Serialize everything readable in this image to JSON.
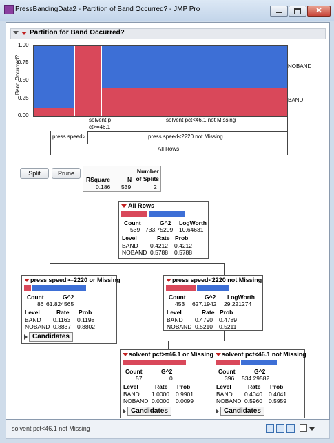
{
  "window": {
    "title": "PressBandingData2 - Partition of Band Occurred? - JMP Pro"
  },
  "report": {
    "heading": "Partition for Band Occurred?"
  },
  "plot": {
    "ylabel": "Band Occurred?",
    "yticks": [
      "1.00",
      "0.75",
      "0.50",
      "0.25",
      "0.00"
    ],
    "legend": {
      "noband": "NOBAND",
      "band": "BAND"
    },
    "segment_labels": [
      "solvent p ct>=46.1",
      "solvent pct<46.1 not Missing"
    ],
    "level2_labels": [
      "press speed>",
      "press speed<2220 not Missing"
    ],
    "root_label": "All Rows",
    "colors": {
      "band": "#d9485a",
      "noband": "#3d6fd6"
    },
    "columns": [
      {
        "name": "press speed>=2220 or Missing",
        "band_rate": 0.1163,
        "width": 86
      },
      {
        "name": "solvent pct>=46.1 or Missing",
        "band_rate": 1.0,
        "width": 57
      },
      {
        "name": "solvent pct<46.1 not Missing",
        "band_rate": 0.404,
        "width": 396
      }
    ]
  },
  "toolbar": {
    "split_label": "Split",
    "prune_label": "Prune"
  },
  "summary": {
    "headers": [
      "RSquare",
      "N",
      "Number of Splits"
    ],
    "values": [
      "0.186",
      "539",
      "2"
    ]
  },
  "tree": {
    "root": {
      "title": "All Rows",
      "count_headers": [
        "Count",
        "G^2",
        "LogWorth"
      ],
      "count_values": [
        "539",
        "733.75209",
        "10.64631"
      ],
      "level_headers": [
        "Level",
        "Rate",
        "Prob"
      ],
      "levels": [
        {
          "level": "BAND",
          "rate": "0.4212",
          "prob": "0.4212"
        },
        {
          "level": "NOBAND",
          "rate": "0.5788",
          "prob": "0.5788"
        }
      ]
    },
    "left": {
      "title": "press speed>=2220 or Missing",
      "count_headers": [
        "Count",
        "G^2"
      ],
      "count_values": [
        "86",
        "61.824565"
      ],
      "level_headers": [
        "Level",
        "Rate",
        "Prob"
      ],
      "levels": [
        {
          "level": "BAND",
          "rate": "0.1163",
          "prob": "0.1198"
        },
        {
          "level": "NOBAND",
          "rate": "0.8837",
          "prob": "0.8802"
        }
      ],
      "candidates_label": "Candidates"
    },
    "right": {
      "title": "press speed<2220 not Missing",
      "count_headers": [
        "Count",
        "G^2",
        "LogWorth"
      ],
      "count_values": [
        "453",
        "627.1942",
        "29.221274"
      ],
      "level_headers": [
        "Level",
        "Rate",
        "Prob"
      ],
      "levels": [
        {
          "level": "BAND",
          "rate": "0.4790",
          "prob": "0.4789"
        },
        {
          "level": "NOBAND",
          "rate": "0.5210",
          "prob": "0.5211"
        }
      ]
    },
    "rl": {
      "title": "solvent pct>=46.1 or Missing",
      "count_headers": [
        "Count",
        "G^2"
      ],
      "count_values": [
        "57",
        "0"
      ],
      "level_headers": [
        "Level",
        "Rate",
        "Prob"
      ],
      "levels": [
        {
          "level": "BAND",
          "rate": "1.0000",
          "prob": "0.9901"
        },
        {
          "level": "NOBAND",
          "rate": "0.0000",
          "prob": "0.0099"
        }
      ],
      "candidates_label": "Candidates"
    },
    "rr": {
      "title": "solvent pct<46.1 not Missing",
      "count_headers": [
        "Count",
        "G^2"
      ],
      "count_values": [
        "396",
        "534.29582"
      ],
      "level_headers": [
        "Level",
        "Rate",
        "Prob"
      ],
      "levels": [
        {
          "level": "BAND",
          "rate": "0.4040",
          "prob": "0.4041"
        },
        {
          "level": "NOBAND",
          "rate": "0.5960",
          "prob": "0.5959"
        }
      ],
      "candidates_label": "Candidates"
    }
  },
  "status": {
    "text": "solvent pct<46.1 not Missing"
  }
}
